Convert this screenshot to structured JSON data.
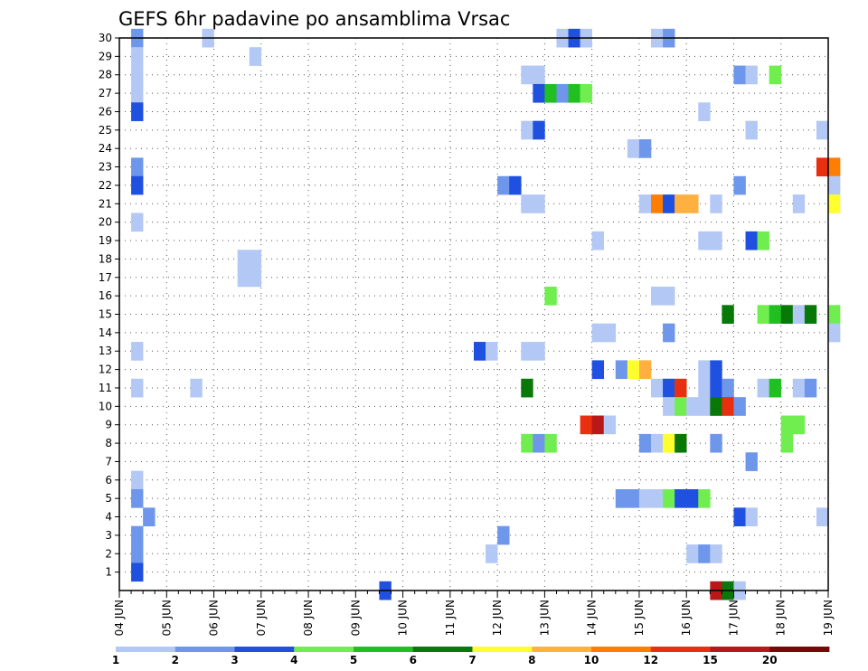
{
  "chart_data": {
    "type": "heatmap",
    "title": "GEFS 6hr padavine po ansamblima Vrsac",
    "xlabel": "",
    "ylabel": "",
    "x_ticks": [
      "04 JUN",
      "05 JUN",
      "06 JUN",
      "07 JUN",
      "08 JUN",
      "09 JUN",
      "10 JUN",
      "11 JUN",
      "12 JUN",
      "13 JUN",
      "14 JUN",
      "15 JUN",
      "16 JUN",
      "17 JUN",
      "18 JUN",
      "19 JUN"
    ],
    "x_range_days": [
      0,
      15
    ],
    "y_ticks": [
      1,
      2,
      3,
      4,
      5,
      6,
      7,
      8,
      9,
      10,
      11,
      12,
      13,
      14,
      15,
      16,
      17,
      18,
      19,
      20,
      21,
      22,
      23,
      24,
      25,
      26,
      27,
      28,
      29,
      30
    ],
    "y_range": [
      0,
      30
    ],
    "grid": true,
    "colorbar": {
      "labels": [
        "1",
        "2",
        "3",
        "4",
        "5",
        "6",
        "7",
        "8",
        "10",
        "12",
        "15",
        "20"
      ],
      "colors": [
        "#b4c8f5",
        "#6e96eb",
        "#2050e0",
        "#70ee50",
        "#20c020",
        "#087808",
        "#ffff30",
        "#ffb040",
        "#ff7d00",
        "#e83010",
        "#b81818",
        "#780808"
      ]
    },
    "cells": [
      [
        30,
        0.25,
        1
      ],
      [
        30,
        1.75,
        0
      ],
      [
        30,
        9.25,
        0
      ],
      [
        30,
        9.5,
        2
      ],
      [
        30,
        9.75,
        0
      ],
      [
        30,
        11.25,
        0
      ],
      [
        30,
        11.5,
        1
      ],
      [
        29,
        0.25,
        0
      ],
      [
        29,
        2.75,
        0
      ],
      [
        28,
        0.25,
        0
      ],
      [
        28,
        8.5,
        0
      ],
      [
        28,
        8.75,
        0
      ],
      [
        28,
        13,
        1
      ],
      [
        28,
        13.25,
        0
      ],
      [
        28,
        13.75,
        3
      ],
      [
        27,
        0.25,
        0
      ],
      [
        27,
        8.75,
        2
      ],
      [
        27,
        9,
        4
      ],
      [
        27,
        9.25,
        1
      ],
      [
        27,
        9.5,
        4
      ],
      [
        27,
        9.75,
        3
      ],
      [
        26,
        0.25,
        2
      ],
      [
        26,
        12.25,
        0
      ],
      [
        25,
        8.5,
        0
      ],
      [
        25,
        8.75,
        2
      ],
      [
        25,
        13.25,
        0
      ],
      [
        25,
        14.75,
        0
      ],
      [
        24,
        10.75,
        0
      ],
      [
        24,
        11,
        1
      ],
      [
        23,
        0.25,
        1
      ],
      [
        23,
        14.75,
        9
      ],
      [
        23,
        15,
        8
      ],
      [
        22,
        0.25,
        2
      ],
      [
        22,
        8,
        1
      ],
      [
        22,
        8.25,
        2
      ],
      [
        22,
        13,
        1
      ],
      [
        22,
        15,
        0
      ],
      [
        21,
        8.5,
        0
      ],
      [
        21,
        8.75,
        0
      ],
      [
        21,
        11,
        0
      ],
      [
        21,
        11.25,
        8
      ],
      [
        21,
        11.5,
        2
      ],
      [
        21,
        11.75,
        7
      ],
      [
        21,
        12,
        7
      ],
      [
        21,
        12.5,
        0
      ],
      [
        21,
        14.25,
        0
      ],
      [
        21,
        15,
        6
      ],
      [
        20,
        0.25,
        0
      ],
      [
        19,
        10,
        0
      ],
      [
        19,
        12.25,
        0
      ],
      [
        19,
        12.5,
        0
      ],
      [
        19,
        13.25,
        2
      ],
      [
        19,
        13.5,
        3
      ],
      [
        18,
        2.5,
        0
      ],
      [
        18,
        2.75,
        0
      ],
      [
        17,
        2.5,
        0
      ],
      [
        17,
        2.75,
        0
      ],
      [
        16,
        9,
        3
      ],
      [
        16,
        11.25,
        0
      ],
      [
        16,
        11.5,
        0
      ],
      [
        15,
        12.75,
        5
      ],
      [
        15,
        13.5,
        3
      ],
      [
        15,
        13.75,
        4
      ],
      [
        15,
        14,
        5
      ],
      [
        15,
        14.25,
        0
      ],
      [
        15,
        14.5,
        5
      ],
      [
        15,
        15,
        3
      ],
      [
        14,
        10,
        0
      ],
      [
        14,
        10.25,
        0
      ],
      [
        14,
        11.5,
        1
      ],
      [
        14,
        15,
        0
      ],
      [
        13,
        0.25,
        0
      ],
      [
        13,
        7.5,
        2
      ],
      [
        13,
        7.75,
        0
      ],
      [
        13,
        8.5,
        0
      ],
      [
        13,
        8.75,
        0
      ],
      [
        12,
        10,
        2
      ],
      [
        12,
        10.5,
        1
      ],
      [
        12,
        10.75,
        6
      ],
      [
        12,
        11,
        7
      ],
      [
        12,
        12.25,
        0
      ],
      [
        12,
        12.5,
        2
      ],
      [
        11,
        0.25,
        0
      ],
      [
        11,
        1.5,
        0
      ],
      [
        11,
        8.5,
        5
      ],
      [
        11,
        11.25,
        0
      ],
      [
        11,
        11.5,
        2
      ],
      [
        11,
        11.75,
        9
      ],
      [
        11,
        12.25,
        0
      ],
      [
        11,
        12.5,
        2
      ],
      [
        11,
        12.75,
        1
      ],
      [
        11,
        13.5,
        0
      ],
      [
        11,
        13.75,
        4
      ],
      [
        11,
        14.25,
        0
      ],
      [
        11,
        14.5,
        1
      ],
      [
        10,
        11.5,
        0
      ],
      [
        10,
        11.75,
        3
      ],
      [
        10,
        12,
        0
      ],
      [
        10,
        12.25,
        0
      ],
      [
        10,
        12.5,
        5
      ],
      [
        10,
        12.75,
        9
      ],
      [
        10,
        13,
        1
      ],
      [
        9,
        9.75,
        9
      ],
      [
        9,
        10,
        10
      ],
      [
        9,
        10.25,
        0
      ],
      [
        9,
        14,
        3
      ],
      [
        9,
        14.25,
        3
      ],
      [
        8,
        8.5,
        3
      ],
      [
        8,
        8.75,
        1
      ],
      [
        8,
        9,
        3
      ],
      [
        8,
        11,
        1
      ],
      [
        8,
        11.25,
        0
      ],
      [
        8,
        11.5,
        6
      ],
      [
        8,
        11.75,
        5
      ],
      [
        8,
        12.5,
        1
      ],
      [
        8,
        14,
        3
      ],
      [
        7,
        13.25,
        1
      ],
      [
        6,
        0.25,
        0
      ],
      [
        5,
        0.25,
        1
      ],
      [
        5,
        10.5,
        1
      ],
      [
        5,
        10.75,
        1
      ],
      [
        5,
        11,
        0
      ],
      [
        5,
        11.25,
        0
      ],
      [
        5,
        11.5,
        3
      ],
      [
        5,
        11.75,
        2
      ],
      [
        5,
        12,
        2
      ],
      [
        5,
        12.25,
        3
      ],
      [
        4,
        0.5,
        1
      ],
      [
        4,
        13,
        2
      ],
      [
        4,
        13.25,
        0
      ],
      [
        4,
        14.75,
        0
      ],
      [
        3,
        0.25,
        1
      ],
      [
        3,
        8,
        1
      ],
      [
        2,
        0.25,
        1
      ],
      [
        2,
        7.75,
        0
      ],
      [
        2,
        12,
        0
      ],
      [
        2,
        12.25,
        1
      ],
      [
        2,
        12.5,
        0
      ],
      [
        1,
        0.25,
        2
      ],
      [
        0,
        5.5,
        2
      ],
      [
        0,
        12.5,
        10
      ],
      [
        0,
        12.75,
        5
      ],
      [
        0,
        13,
        0
      ]
    ]
  }
}
